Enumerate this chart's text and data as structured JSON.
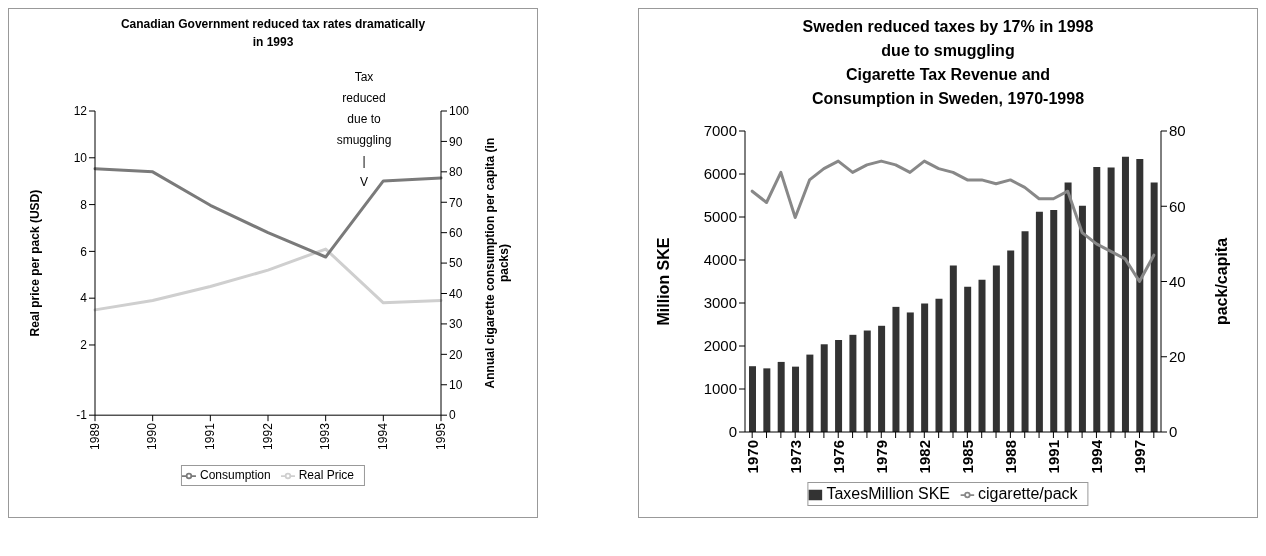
{
  "chart_data": [
    {
      "type": "line",
      "title": "Canadian Government reduced tax rates dramatically in 1993",
      "categories": [
        "1989",
        "1990",
        "1991",
        "1992",
        "1993",
        "1994",
        "1995"
      ],
      "series": [
        {
          "name": "Real Price",
          "color": "#cfcfcf",
          "values": [
            3.5,
            3.9,
            4.5,
            5.2,
            6.1,
            3.8,
            3.9
          ]
        },
        {
          "name": "Consumption",
          "color": "#7a7a7a",
          "axis": "y2",
          "values": [
            81,
            80,
            69,
            60,
            52,
            77,
            78
          ]
        }
      ],
      "ylabel": "Real price per pack (USD)",
      "y2label": "Annual cigarette consumption per capita (in packs)",
      "ylim": [
        -1,
        12
      ],
      "yticks": [
        -1,
        2,
        4,
        6,
        8,
        10,
        12
      ],
      "y2lim": [
        0,
        100
      ],
      "y2ticks": [
        0,
        10,
        20,
        30,
        40,
        50,
        60,
        70,
        80,
        90,
        100
      ],
      "annotations": [
        "Tax\nreduced\ndue to\nsmuggling\n|\nV"
      ],
      "legend": "bottom"
    },
    {
      "type": "bar",
      "title": "Sweden reduced taxes by 17% in 1998 due to smuggling",
      "subtitle": "Cigarette Tax Revenue and Consumption in Sweden, 1970-1998",
      "categories": [
        "1970",
        null,
        null,
        "1973",
        null,
        null,
        "1976",
        null,
        null,
        "1979",
        null,
        null,
        "1982",
        null,
        null,
        "1985",
        null,
        null,
        "1988",
        null,
        null,
        "1991",
        null,
        null,
        "1994",
        null,
        null,
        "1997",
        null
      ],
      "series": [
        {
          "name": "TaxesMillion SKE",
          "color": "#333333",
          "values": [
            1530,
            1480,
            1630,
            1520,
            1800,
            2040,
            2140,
            2260,
            2360,
            2470,
            2910,
            2780,
            2990,
            3100,
            3870,
            3380,
            3540,
            3870,
            4220,
            4670,
            5120,
            5160,
            5800,
            5260,
            6160,
            6150,
            6400,
            6350,
            5800
          ]
        },
        {
          "name": "cigarette/pack",
          "type": "line",
          "axis": "y2",
          "color": "#888888",
          "values": [
            64,
            61,
            69,
            57,
            67,
            70,
            72,
            69,
            71,
            72,
            71,
            69,
            72,
            70,
            69,
            67,
            67,
            66,
            67,
            65,
            62,
            62,
            64,
            53,
            50,
            48,
            46,
            40,
            47
          ]
        }
      ],
      "ylabel": "Million SKE",
      "y2label": "pack/capita",
      "ylim": [
        0,
        7000
      ],
      "yticks": [
        0,
        1000,
        2000,
        3000,
        4000,
        5000,
        6000,
        7000
      ],
      "y2lim": [
        0,
        80
      ],
      "y2ticks": [
        0,
        20,
        40,
        60,
        80
      ],
      "legend": "bottom"
    }
  ]
}
